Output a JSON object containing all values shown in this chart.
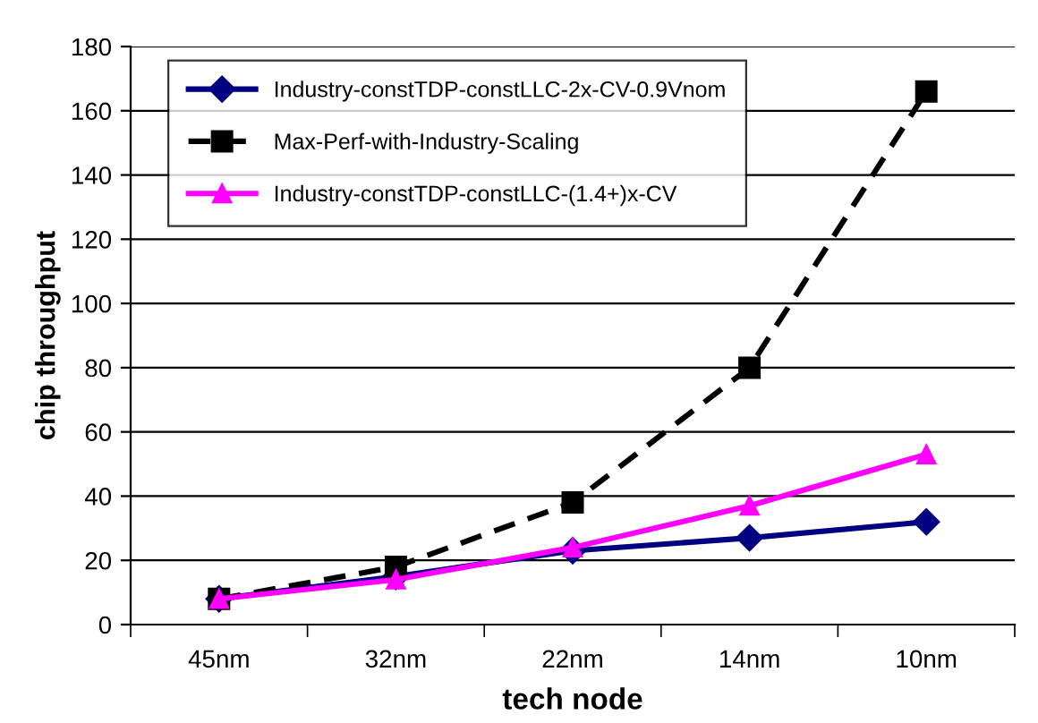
{
  "chart_data": {
    "type": "line",
    "xlabel": "tech node",
    "ylabel": "chip throughput",
    "categories": [
      "45nm",
      "32nm",
      "22nm",
      "14nm",
      "10nm"
    ],
    "series": [
      {
        "name": "Industry-constTDP-constLLC-2x-CV-0.9Vnom",
        "color": "#000080",
        "marker": "diamond",
        "line_style": "solid",
        "values": [
          8,
          15,
          23,
          27,
          32
        ]
      },
      {
        "name": "Max-Perf-with-Industry-Scaling",
        "color": "#000000",
        "marker": "square",
        "line_style": "dashed",
        "values": [
          8,
          18,
          38,
          80,
          166
        ]
      },
      {
        "name": "Industry-constTDP-constLLC-(1.4+)x-CV",
        "color": "#ff00ff",
        "marker": "triangle",
        "line_style": "solid",
        "values": [
          8,
          14,
          24,
          37,
          53
        ]
      }
    ],
    "ylim": [
      0,
      180
    ],
    "yticks": [
      0,
      20,
      40,
      60,
      80,
      100,
      120,
      140,
      160,
      180
    ],
    "grid": "y",
    "legend": "top left"
  }
}
